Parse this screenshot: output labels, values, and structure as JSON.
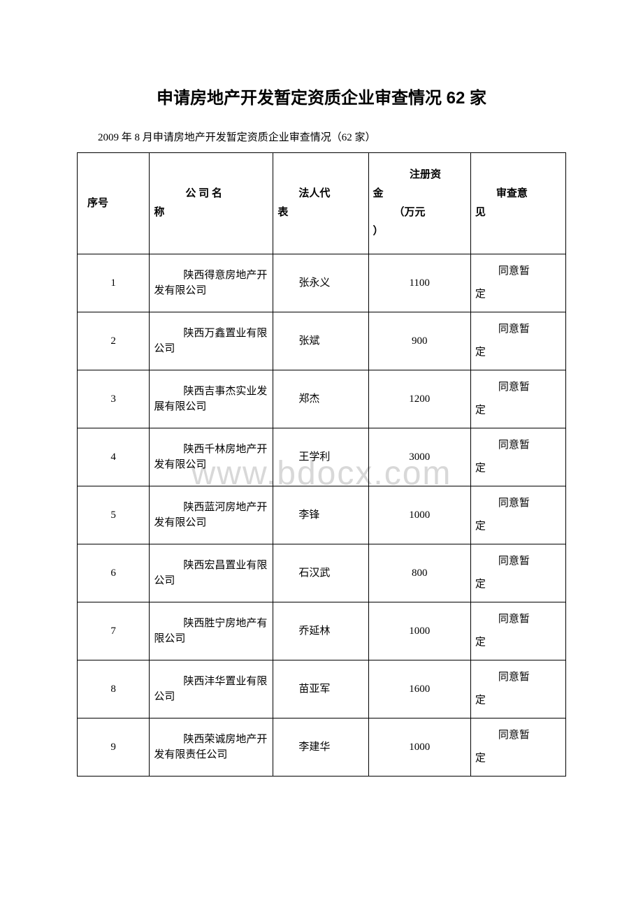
{
  "title": "申请房地产开发暂定资质企业审查情况 62 家",
  "subtitle": "2009 年 8 月申请房地产开发暂定资质企业审查情况（62 家）",
  "watermark": "www.bdocx.com",
  "table": {
    "headers": {
      "seq": "序号",
      "company_line1": "公 司 名",
      "company_line2": "称",
      "rep_line1": "法人代",
      "rep_line2": "表",
      "capital_line1": "注册资",
      "capital_line2": "金",
      "capital_line3": "（万元",
      "capital_line4": "）",
      "opinion_line1": "审查意",
      "opinion_line2": "见"
    },
    "rows": [
      {
        "seq": "1",
        "company": "陕西得意房地产开发有限公司",
        "rep": "张永义",
        "capital": "1100",
        "opinion1": "同意暂",
        "opinion2": "定"
      },
      {
        "seq": "2",
        "company": "陕西万鑫置业有限公司",
        "rep": "张斌",
        "capital": "900",
        "opinion1": "同意暂",
        "opinion2": "定"
      },
      {
        "seq": "3",
        "company": "陕西吉事杰实业发展有限公司",
        "rep": "郑杰",
        "capital": "1200",
        "opinion1": "同意暂",
        "opinion2": "定"
      },
      {
        "seq": "4",
        "company": "陕西千林房地产开发有限公司",
        "rep": "王学利",
        "capital": "3000",
        "opinion1": "同意暂",
        "opinion2": "定"
      },
      {
        "seq": "5",
        "company": "陕西蓝河房地产开发有限公司",
        "rep": "李锋",
        "capital": "1000",
        "opinion1": "同意暂",
        "opinion2": "定"
      },
      {
        "seq": "6",
        "company": "陕西宏昌置业有限公司",
        "rep": "石汉武",
        "capital": "800",
        "opinion1": "同意暂",
        "opinion2": "定"
      },
      {
        "seq": "7",
        "company": "陕西胜宁房地产有限公司",
        "rep": "乔延林",
        "capital": "1000",
        "opinion1": "同意暂",
        "opinion2": "定"
      },
      {
        "seq": "8",
        "company": "陕西沣华置业有限公司",
        "rep": "苗亚军",
        "capital": "1600",
        "opinion1": "同意暂",
        "opinion2": "定"
      },
      {
        "seq": "9",
        "company": "陕西荣诚房地产开发有限责任公司",
        "rep": "李建华",
        "capital": "1000",
        "opinion1": "同意暂",
        "opinion2": "定"
      }
    ]
  },
  "colors": {
    "text": "#000000",
    "border": "#000000",
    "background": "#ffffff",
    "watermark": "#d8d8d8"
  }
}
